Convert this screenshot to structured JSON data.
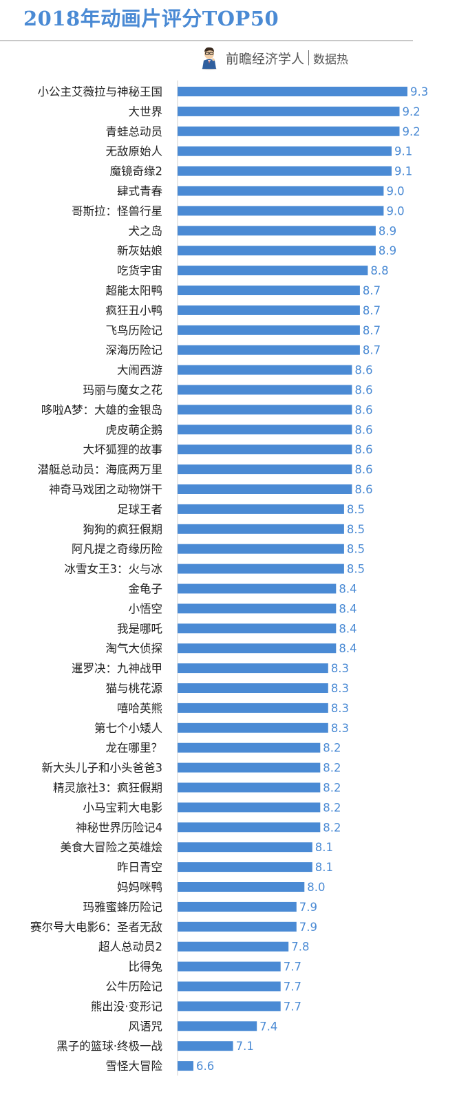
{
  "header": {
    "title": "2018年动画片评分TOP50",
    "brand_name": "前瞻经济学人",
    "brand_sub": "数据热"
  },
  "colors": {
    "bar": "#4a8ad4",
    "value_text": "#4a8ad4",
    "title": "#4a8ad4"
  },
  "chart_data": {
    "type": "bar",
    "orientation": "horizontal",
    "title": "2018年动画片评分TOP50",
    "xlabel": "",
    "ylabel": "",
    "xlim": [
      6.4,
      9.3
    ],
    "grid": false,
    "legend": "none",
    "categories": [
      "小公主艾薇拉与神秘王国",
      "大世界",
      "青蛙总动员",
      "无敌原始人",
      "魔镜奇缘2",
      "肆式青春",
      "哥斯拉：怪兽行星",
      "犬之岛",
      "新灰姑娘",
      "吃货宇宙",
      "超能太阳鸭",
      "疯狂丑小鸭",
      "飞鸟历险记",
      "深海历险记",
      "大闹西游",
      "玛丽与魔女之花",
      "哆啦A梦：大雄的金银岛",
      "虎皮萌企鹅",
      "大坏狐狸的故事",
      "潜艇总动员：海底两万里",
      "神奇马戏团之动物饼干",
      "足球王者",
      "狗狗的疯狂假期",
      "阿凡提之奇缘历险",
      "冰雪女王3：火与冰",
      "金龟子",
      "小悟空",
      "我是哪吒",
      "淘气大侦探",
      "暹罗决：九神战甲",
      "猫与桃花源",
      "嘻哈英熊",
      "第七个小矮人",
      "龙在哪里？",
      "新大头儿子和小头爸爸3",
      "精灵旅社3：疯狂假期",
      "小马宝莉大电影",
      "神秘世界历险记4",
      "美食大冒险之英雄烩",
      "昨日青空",
      "妈妈咪鸭",
      "玛雅蜜蜂历险记",
      "赛尔号大电影6：圣者无敌",
      "超人总动员2",
      "比得兔",
      "公牛历险记",
      "熊出没·变形记",
      "风语咒",
      "黑子的篮球·终极一战",
      "雪怪大冒险"
    ],
    "values": [
      9.3,
      9.2,
      9.2,
      9.1,
      9.1,
      9.0,
      9.0,
      8.9,
      8.9,
      8.8,
      8.7,
      8.7,
      8.7,
      8.7,
      8.6,
      8.6,
      8.6,
      8.6,
      8.6,
      8.6,
      8.6,
      8.5,
      8.5,
      8.5,
      8.5,
      8.4,
      8.4,
      8.4,
      8.4,
      8.3,
      8.3,
      8.3,
      8.3,
      8.2,
      8.2,
      8.2,
      8.2,
      8.2,
      8.1,
      8.1,
      8.0,
      7.9,
      7.9,
      7.8,
      7.7,
      7.7,
      7.7,
      7.4,
      7.1,
      6.6
    ],
    "value_labels": [
      "9.3",
      "9.2",
      "9.2",
      "9.1",
      "9.1",
      "9.0",
      "9.0",
      "8.9",
      "8.9",
      "8.8",
      "8.7",
      "8.7",
      "8.7",
      "8.7",
      "8.6",
      "8.6",
      "8.6",
      "8.6",
      "8.6",
      "8.6",
      "8.6",
      "8.5",
      "8.5",
      "8.5",
      "8.5",
      "8.4",
      "8.4",
      "8.4",
      "8.4",
      "8.3",
      "8.3",
      "8.3",
      "8.3",
      "8.2",
      "8.2",
      "8.2",
      "8.2",
      "8.2",
      "8.1",
      "8.1",
      "8.0",
      "7.9",
      "7.9",
      "7.8",
      "7.7",
      "7.7",
      "7.7",
      "7.4",
      "7.1",
      "6.6"
    ]
  }
}
